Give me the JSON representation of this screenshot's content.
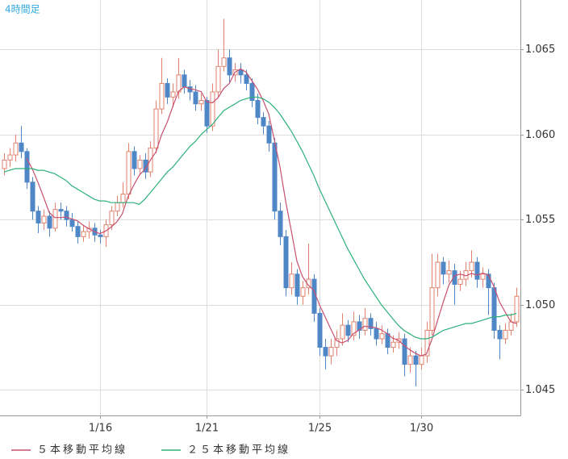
{
  "chart_data": {
    "type": "candlestick",
    "title": "4時間足",
    "categories": [
      null,
      null,
      null,
      null,
      null,
      null,
      null,
      null,
      null,
      null,
      null,
      null,
      null,
      null,
      null,
      null,
      null,
      "1/16",
      null,
      null,
      null,
      null,
      null,
      null,
      null,
      null,
      null,
      null,
      null,
      null,
      null,
      null,
      null,
      null,
      null,
      null,
      "1/21",
      null,
      null,
      null,
      null,
      null,
      null,
      null,
      null,
      null,
      null,
      null,
      null,
      null,
      null,
      null,
      null,
      null,
      null,
      null,
      "1/25",
      null,
      null,
      null,
      null,
      null,
      null,
      null,
      null,
      null,
      null,
      null,
      null,
      null,
      null,
      null,
      null,
      null,
      "1/30",
      null,
      null,
      null,
      null,
      null,
      null,
      null,
      null,
      null,
      null,
      null,
      null,
      null,
      null,
      null,
      null,
      null
    ],
    "open": [
      1.058,
      1.0585,
      1.0588,
      1.0595,
      1.059,
      1.0572,
      1.0555,
      1.0548,
      1.0552,
      1.0545,
      1.0556,
      1.0555,
      1.055,
      1.0546,
      1.054,
      1.0543,
      1.0545,
      1.0541,
      1.054,
      1.0547,
      1.0555,
      1.056,
      1.0565,
      1.059,
      1.058,
      1.0585,
      1.0578,
      1.0592,
      1.0615,
      1.063,
      1.0622,
      1.0625,
      1.0635,
      1.0628,
      1.0625,
      1.0618,
      1.062,
      1.0605,
      1.0625,
      1.064,
      1.0645,
      1.0635,
      1.0638,
      1.0635,
      1.063,
      1.062,
      1.061,
      1.0605,
      1.0595,
      1.0555,
      1.054,
      1.051,
      1.0518,
      1.0505,
      1.051,
      1.0515,
      1.0495,
      1.0475,
      1.047,
      1.0475,
      1.048,
      1.0488,
      1.0482,
      1.049,
      1.0485,
      1.0492,
      1.0486,
      1.048,
      1.0483,
      1.0475,
      1.0478,
      1.048,
      1.0465,
      1.047,
      1.0465,
      1.047,
      1.0485,
      1.051,
      1.0525,
      1.0518,
      1.052,
      1.0512,
      1.0515,
      1.052,
      1.0525,
      1.0515,
      1.0518,
      1.051,
      1.0485,
      1.048,
      1.0485,
      1.049
    ],
    "high": [
      1.0589,
      1.0592,
      1.06,
      1.0605,
      1.0592,
      1.0575,
      1.0558,
      1.0556,
      1.0555,
      1.056,
      1.056,
      1.0558,
      1.0554,
      1.0549,
      1.0547,
      1.0549,
      1.0548,
      1.0544,
      1.055,
      1.0558,
      1.0564,
      1.0572,
      1.0595,
      1.0593,
      1.0588,
      1.0589,
      1.0596,
      1.062,
      1.0645,
      1.0633,
      1.063,
      1.0645,
      1.0638,
      1.0632,
      1.0629,
      1.0624,
      1.0622,
      1.063,
      1.065,
      1.0668,
      1.065,
      1.0642,
      1.0642,
      1.0638,
      1.0633,
      1.0624,
      1.0613,
      1.0608,
      1.0598,
      1.056,
      1.0544,
      1.0525,
      1.0521,
      1.0514,
      1.0536,
      1.0518,
      1.0498,
      1.048,
      1.048,
      1.0485,
      1.0495,
      1.0491,
      1.0496,
      1.0494,
      1.0498,
      1.0495,
      1.049,
      1.0488,
      1.0486,
      1.0482,
      1.0484,
      1.0483,
      1.0475,
      1.0473,
      1.0475,
      1.049,
      1.053,
      1.053,
      1.0528,
      1.0526,
      1.0524,
      1.052,
      1.0525,
      1.0532,
      1.0528,
      1.0522,
      1.0521,
      1.0513,
      1.0488,
      1.0489,
      1.0495,
      1.051
    ],
    "low": [
      1.0576,
      1.0581,
      1.0584,
      1.0586,
      1.0568,
      1.055,
      1.0542,
      1.0544,
      1.054,
      1.0543,
      1.055,
      1.0546,
      1.0543,
      1.0536,
      1.0537,
      1.0539,
      1.0537,
      1.0536,
      1.0534,
      1.0544,
      1.0552,
      1.0557,
      1.0562,
      1.0576,
      1.0576,
      1.0574,
      1.0575,
      1.0589,
      1.0612,
      1.0618,
      1.0616,
      1.0621,
      1.0624,
      1.062,
      1.0614,
      1.0614,
      1.0601,
      1.0602,
      1.0622,
      1.0637,
      1.063,
      1.0631,
      1.063,
      1.0626,
      1.0616,
      1.0606,
      1.06,
      1.059,
      1.055,
      1.0535,
      1.0505,
      1.0506,
      1.05,
      1.05,
      1.0506,
      1.049,
      1.047,
      1.0462,
      1.0465,
      1.047,
      1.0476,
      1.0478,
      1.0479,
      1.048,
      1.0482,
      1.0482,
      1.0476,
      1.0477,
      1.0471,
      1.0472,
      1.0474,
      1.0458,
      1.046,
      1.0452,
      1.0462,
      1.0466,
      1.0482,
      1.0505,
      1.0512,
      1.0513,
      1.05,
      1.0508,
      1.0511,
      1.0516,
      1.051,
      1.051,
      1.0494,
      1.048,
      1.0468,
      1.0477,
      1.0482,
      1.0487
    ],
    "close": [
      1.0585,
      1.0588,
      1.0595,
      1.059,
      1.0572,
      1.0555,
      1.0548,
      1.0552,
      1.0545,
      1.0556,
      1.0555,
      1.055,
      1.0546,
      1.054,
      1.0543,
      1.0545,
      1.0541,
      1.054,
      1.0547,
      1.0555,
      1.056,
      1.0565,
      1.059,
      1.058,
      1.0585,
      1.0578,
      1.0592,
      1.0615,
      1.063,
      1.0622,
      1.0625,
      1.0635,
      1.0628,
      1.0625,
      1.0618,
      1.062,
      1.0605,
      1.0625,
      1.064,
      1.0645,
      1.0635,
      1.0638,
      1.0635,
      1.063,
      1.062,
      1.061,
      1.0605,
      1.0595,
      1.0555,
      1.054,
      1.051,
      1.0518,
      1.0505,
      1.051,
      1.0515,
      1.0495,
      1.0475,
      1.047,
      1.0475,
      1.048,
      1.0488,
      1.0482,
      1.049,
      1.0485,
      1.0492,
      1.0486,
      1.048,
      1.0483,
      1.0475,
      1.0478,
      1.048,
      1.0465,
      1.047,
      1.0465,
      1.047,
      1.0485,
      1.051,
      1.0525,
      1.0518,
      1.052,
      1.0512,
      1.0515,
      1.052,
      1.0525,
      1.0515,
      1.0518,
      1.051,
      1.0485,
      1.048,
      1.0485,
      1.049,
      1.0505
    ],
    "up_color": "#e0826e",
    "down_color": "#4f86c6",
    "series": [
      {
        "name": "５本移動平均線",
        "color": "#c8506e",
        "values": [
          null,
          null,
          null,
          null,
          1.0586,
          1.058,
          1.0572,
          1.05634,
          1.05544,
          1.05512,
          1.05512,
          1.05516,
          1.05504,
          1.05494,
          1.05468,
          1.05448,
          1.0543,
          1.05418,
          1.05432,
          1.05456,
          1.05486,
          1.05534,
          1.05634,
          1.057,
          1.0576,
          1.05796,
          1.0585,
          1.059,
          1.06,
          1.06074,
          1.06168,
          1.06254,
          1.0628,
          1.0627,
          1.06262,
          1.06252,
          1.06192,
          1.06186,
          1.06216,
          1.0627,
          1.063,
          1.06366,
          1.06386,
          1.06366,
          1.06316,
          1.06266,
          1.062,
          1.0612,
          1.0597,
          1.0581,
          1.0561,
          1.05436,
          1.05256,
          1.05166,
          1.05116,
          1.05086,
          1.05,
          1.0493,
          1.0486,
          1.0479,
          1.04776,
          1.0479,
          1.0483,
          1.0485,
          1.04874,
          1.0487,
          1.04866,
          1.04852,
          1.04832,
          1.04804,
          1.04792,
          1.04762,
          1.04736,
          1.04716,
          1.047,
          1.0471,
          1.048,
          1.0491,
          1.05016,
          1.05116,
          1.0517,
          1.0518,
          1.0517,
          1.05184,
          1.05174,
          1.05186,
          1.05176,
          1.05106,
          1.05016,
          1.04956,
          1.049,
          1.0489
        ]
      },
      {
        "name": "２５本移動平均線",
        "color": "#2db07a",
        "values": [
          1.0578,
          1.0579,
          1.058,
          1.058,
          1.058,
          1.058,
          1.0579,
          1.0579,
          1.0578,
          1.0577,
          1.0575,
          1.0573,
          1.057,
          1.0568,
          1.0566,
          1.0564,
          1.0562,
          1.0561,
          1.0561,
          1.056,
          1.056,
          1.056,
          1.056,
          1.056,
          1.0559,
          1.0562,
          1.0566,
          1.057,
          1.0574,
          1.0578,
          1.0581,
          1.0585,
          1.0589,
          1.0593,
          1.0596,
          1.06,
          1.0603,
          1.0606,
          1.061,
          1.0614,
          1.0616,
          1.0618,
          1.062,
          1.0621,
          1.0622,
          1.0622,
          1.0621,
          1.0619,
          1.0616,
          1.0612,
          1.0607,
          1.0602,
          1.0596,
          1.059,
          1.0583,
          1.0576,
          1.0568,
          1.0561,
          1.0554,
          1.0547,
          1.054,
          1.0533,
          1.0527,
          1.0521,
          1.0515,
          1.051,
          1.0505,
          1.05,
          1.0496,
          1.0492,
          1.0488,
          1.0485,
          1.0483,
          1.0481,
          1.048,
          1.048,
          1.0481,
          1.0483,
          1.0485,
          1.0486,
          1.0487,
          1.0488,
          1.0489,
          1.0489,
          1.049,
          1.0491,
          1.0492,
          1.0493,
          1.0493,
          1.0494,
          1.0494,
          1.0495
        ]
      }
    ],
    "ylim": [
      1.0435,
      1.0679
    ],
    "yticks": [
      1.045,
      {
        "value": 1.05,
        "label": "1.050"
      },
      1.055,
      {
        "value": 1.06,
        "label": "1.060"
      },
      1.065
    ],
    "grid": true
  }
}
